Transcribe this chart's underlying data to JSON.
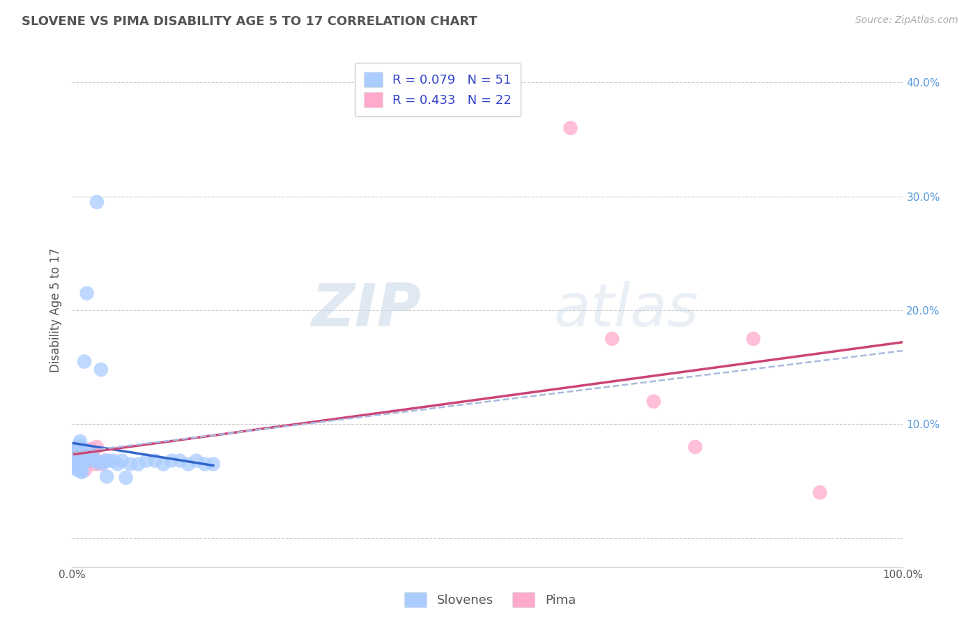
{
  "title": "SLOVENE VS PIMA DISABILITY AGE 5 TO 17 CORRELATION CHART",
  "source_text": "Source: ZipAtlas.com",
  "ylabel": "Disability Age 5 to 17",
  "xlim": [
    0.0,
    1.0
  ],
  "ylim": [
    -0.025,
    0.425
  ],
  "xticks": [
    0.0,
    0.1,
    0.2,
    0.3,
    0.4,
    0.5,
    0.6,
    0.7,
    0.8,
    0.9,
    1.0
  ],
  "xticklabels": [
    "0.0%",
    "",
    "",
    "",
    "",
    "",
    "",
    "",
    "",
    "",
    "100.0%"
  ],
  "yticks": [
    0.0,
    0.1,
    0.2,
    0.3,
    0.4
  ],
  "yticklabels": [
    "",
    "10.0%",
    "20.0%",
    "30.0%",
    "40.0%"
  ],
  "grid_color": "#cccccc",
  "background_color": "#ffffff",
  "slovene_color": "#aaccff",
  "pima_color": "#ffaacc",
  "slovene_line_color": "#3366cc",
  "pima_line_color": "#cc4477",
  "trend_line_color": "#aabbdd",
  "R_slovene": 0.079,
  "N_slovene": 51,
  "R_pima": 0.433,
  "N_pima": 22,
  "legend_label_slovene": "Slovenes",
  "legend_label_pima": "Pima",
  "slovene_x": [
    0.002,
    0.003,
    0.004,
    0.004,
    0.005,
    0.005,
    0.006,
    0.006,
    0.007,
    0.007,
    0.008,
    0.008,
    0.009,
    0.009,
    0.01,
    0.01,
    0.011,
    0.011,
    0.012,
    0.012,
    0.013,
    0.014,
    0.015,
    0.016,
    0.018,
    0.02,
    0.022,
    0.025,
    0.028,
    0.03,
    0.032,
    0.035,
    0.038,
    0.04,
    0.042,
    0.045,
    0.05,
    0.055,
    0.06,
    0.065,
    0.07,
    0.08,
    0.09,
    0.1,
    0.11,
    0.12,
    0.13,
    0.14,
    0.15,
    0.16,
    0.17
  ],
  "slovene_y": [
    0.068,
    0.072,
    0.075,
    0.065,
    0.078,
    0.062,
    0.071,
    0.06,
    0.08,
    0.064,
    0.073,
    0.066,
    0.082,
    0.061,
    0.085,
    0.063,
    0.077,
    0.059,
    0.079,
    0.058,
    0.076,
    0.069,
    0.155,
    0.069,
    0.215,
    0.068,
    0.075,
    0.072,
    0.068,
    0.295,
    0.066,
    0.148,
    0.066,
    0.068,
    0.054,
    0.068,
    0.068,
    0.065,
    0.068,
    0.053,
    0.065,
    0.065,
    0.068,
    0.068,
    0.065,
    0.068,
    0.068,
    0.065,
    0.068,
    0.065,
    0.065
  ],
  "pima_x": [
    0.003,
    0.005,
    0.007,
    0.008,
    0.01,
    0.012,
    0.014,
    0.016,
    0.018,
    0.02,
    0.022,
    0.025,
    0.028,
    0.03,
    0.035,
    0.04,
    0.6,
    0.65,
    0.7,
    0.75,
    0.82,
    0.9
  ],
  "pima_y": [
    0.075,
    0.068,
    0.065,
    0.08,
    0.07,
    0.065,
    0.072,
    0.06,
    0.075,
    0.068,
    0.078,
    0.075,
    0.065,
    0.08,
    0.065,
    0.068,
    0.36,
    0.175,
    0.12,
    0.08,
    0.175,
    0.04
  ]
}
